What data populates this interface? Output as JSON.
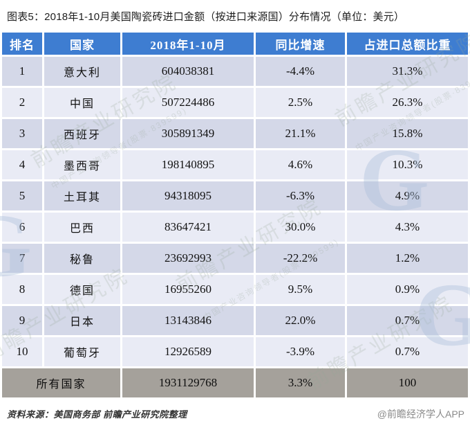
{
  "title": "图表5：2018年1-10月美国陶瓷砖进口金额（按进口来源国）分布情况（单位：美元）",
  "chart_data": {
    "type": "table",
    "title": "2018年1-10月美国陶瓷砖进口金额（按进口来源国）分布情况（单位：美元）",
    "columns": [
      "排名",
      "国家",
      "2018年1-10月",
      "同比增速",
      "占进口总额比重"
    ],
    "rows": [
      [
        "1",
        "意大利",
        "604038381",
        "-4.4%",
        "31.3%"
      ],
      [
        "2",
        "中国",
        "507224486",
        "2.5%",
        "26.3%"
      ],
      [
        "3",
        "西班牙",
        "305891349",
        "21.1%",
        "15.8%"
      ],
      [
        "4",
        "墨西哥",
        "198140895",
        "4.6%",
        "10.3%"
      ],
      [
        "5",
        "土耳其",
        "94318095",
        "-6.3%",
        "4.9%"
      ],
      [
        "6",
        "巴西",
        "83647421",
        "30.0%",
        "4.3%"
      ],
      [
        "7",
        "秘鲁",
        "23692993",
        "-22.2%",
        "1.2%"
      ],
      [
        "8",
        "德国",
        "16955260",
        "9.5%",
        "0.9%"
      ],
      [
        "9",
        "日本",
        "13143846",
        "22.0%",
        "0.7%"
      ],
      [
        "10",
        "葡萄牙",
        "12926589",
        "-3.9%",
        "0.7%"
      ]
    ],
    "total_row": {
      "label": "所有国家",
      "value": "1931129768",
      "yoy": "3.3%",
      "share": "100"
    }
  },
  "footer": {
    "source": "资料来源：美国商务部 前瞻产业研究院整理",
    "credit": "@前瞻经济学人APP"
  },
  "watermark": {
    "text": "前瞻产业研究院",
    "subtext": "中国产业咨询领导者(股票·839599)",
    "logo_letter": "G"
  },
  "colors": {
    "header_bg": "#3E7DD1",
    "row_odd": "#D4D8E8",
    "row_even": "#E9EBF5",
    "total_bg": "#A5A19B"
  }
}
